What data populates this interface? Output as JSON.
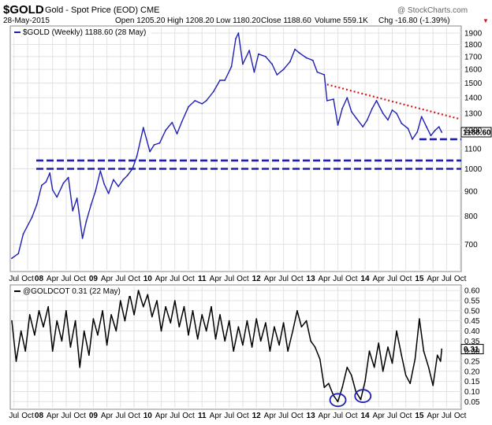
{
  "header": {
    "symbol": "$GOLD",
    "name": "Gold - Spot Price (EOD) CME",
    "date": "28-May-2015",
    "open": "Open 1205.20",
    "high": "High 1208.20",
    "low": "Low 1180.20",
    "close": "Close 1188.60",
    "volume": "Volume 559.1K",
    "chg": "Chg -16.80 (-1.39%)",
    "brand": "@ StockCharts.com",
    "chg_marker": "▼"
  },
  "chart_data": [
    {
      "type": "line",
      "legend": "$GOLD (Weekly) 1188.60 (28 May)",
      "last_value_label": "1188.60",
      "y_scale": "log",
      "ylim": [
        620,
        1950
      ],
      "y_ticks": [
        700,
        800,
        900,
        1000,
        1100,
        1200,
        1300,
        1400,
        1500,
        1600,
        1700,
        1800,
        1900
      ],
      "x_range": [
        2007.5,
        2015.77
      ],
      "x_ticks": [
        {
          "x": 2007.54,
          "label": "Jul"
        },
        {
          "x": 2007.79,
          "label": "Oct"
        },
        {
          "x": 2008.0,
          "label": "08"
        },
        {
          "x": 2008.25,
          "label": "Apr"
        },
        {
          "x": 2008.5,
          "label": "Jul"
        },
        {
          "x": 2008.75,
          "label": "Oct"
        },
        {
          "x": 2009.0,
          "label": "09"
        },
        {
          "x": 2009.25,
          "label": "Apr"
        },
        {
          "x": 2009.5,
          "label": "Jul"
        },
        {
          "x": 2009.75,
          "label": "Oct"
        },
        {
          "x": 2010.0,
          "label": "10"
        },
        {
          "x": 2010.25,
          "label": "Apr"
        },
        {
          "x": 2010.5,
          "label": "Jul"
        },
        {
          "x": 2010.75,
          "label": "Oct"
        },
        {
          "x": 2011.0,
          "label": "11"
        },
        {
          "x": 2011.25,
          "label": "Apr"
        },
        {
          "x": 2011.5,
          "label": "Jul"
        },
        {
          "x": 2011.75,
          "label": "Oct"
        },
        {
          "x": 2012.0,
          "label": "12"
        },
        {
          "x": 2012.25,
          "label": "Apr"
        },
        {
          "x": 2012.5,
          "label": "Jul"
        },
        {
          "x": 2012.75,
          "label": "Oct"
        },
        {
          "x": 2013.0,
          "label": "13"
        },
        {
          "x": 2013.25,
          "label": "Apr"
        },
        {
          "x": 2013.5,
          "label": "Jul"
        },
        {
          "x": 2013.75,
          "label": "Oct"
        },
        {
          "x": 2014.0,
          "label": "14"
        },
        {
          "x": 2014.25,
          "label": "Apr"
        },
        {
          "x": 2014.5,
          "label": "Jul"
        },
        {
          "x": 2014.75,
          "label": "Oct"
        },
        {
          "x": 2015.0,
          "label": "15"
        },
        {
          "x": 2015.25,
          "label": "Apr"
        },
        {
          "x": 2015.5,
          "label": "Jul"
        },
        {
          "x": 2015.75,
          "label": "Oct"
        }
      ],
      "series": [
        {
          "color": "#1f1fb4",
          "style": "weekly-bars",
          "points": [
            [
              2007.5,
              655
            ],
            [
              2007.62,
              670
            ],
            [
              2007.71,
              735
            ],
            [
              2007.87,
              795
            ],
            [
              2007.96,
              845
            ],
            [
              2008.05,
              925
            ],
            [
              2008.13,
              940
            ],
            [
              2008.2,
              980
            ],
            [
              2008.25,
              905
            ],
            [
              2008.33,
              875
            ],
            [
              2008.45,
              935
            ],
            [
              2008.54,
              960
            ],
            [
              2008.62,
              820
            ],
            [
              2008.7,
              870
            ],
            [
              2008.8,
              720
            ],
            [
              2008.87,
              780
            ],
            [
              2008.96,
              845
            ],
            [
              2009.04,
              900
            ],
            [
              2009.13,
              990
            ],
            [
              2009.2,
              930
            ],
            [
              2009.28,
              890
            ],
            [
              2009.37,
              950
            ],
            [
              2009.46,
              920
            ],
            [
              2009.55,
              950
            ],
            [
              2009.63,
              970
            ],
            [
              2009.72,
              1000
            ],
            [
              2009.8,
              1060
            ],
            [
              2009.92,
              1215
            ],
            [
              2010.04,
              1085
            ],
            [
              2010.12,
              1120
            ],
            [
              2010.22,
              1130
            ],
            [
              2010.33,
              1200
            ],
            [
              2010.45,
              1245
            ],
            [
              2010.54,
              1180
            ],
            [
              2010.63,
              1250
            ],
            [
              2010.75,
              1340
            ],
            [
              2010.87,
              1380
            ],
            [
              2011.0,
              1360
            ],
            [
              2011.08,
              1380
            ],
            [
              2011.21,
              1440
            ],
            [
              2011.33,
              1520
            ],
            [
              2011.42,
              1520
            ],
            [
              2011.54,
              1620
            ],
            [
              2011.62,
              1850
            ],
            [
              2011.67,
              1900
            ],
            [
              2011.75,
              1640
            ],
            [
              2011.87,
              1750
            ],
            [
              2011.96,
              1580
            ],
            [
              2012.04,
              1720
            ],
            [
              2012.17,
              1700
            ],
            [
              2012.29,
              1640
            ],
            [
              2012.38,
              1560
            ],
            [
              2012.5,
              1600
            ],
            [
              2012.62,
              1660
            ],
            [
              2012.71,
              1760
            ],
            [
              2012.79,
              1730
            ],
            [
              2012.92,
              1690
            ],
            [
              2013.04,
              1670
            ],
            [
              2013.12,
              1580
            ],
            [
              2013.25,
              1560
            ],
            [
              2013.3,
              1380
            ],
            [
              2013.42,
              1390
            ],
            [
              2013.5,
              1230
            ],
            [
              2013.58,
              1330
            ],
            [
              2013.67,
              1400
            ],
            [
              2013.75,
              1310
            ],
            [
              2013.84,
              1270
            ],
            [
              2013.96,
              1220
            ],
            [
              2014.04,
              1260
            ],
            [
              2014.13,
              1330
            ],
            [
              2014.21,
              1380
            ],
            [
              2014.33,
              1300
            ],
            [
              2014.42,
              1260
            ],
            [
              2014.5,
              1320
            ],
            [
              2014.58,
              1300
            ],
            [
              2014.67,
              1240
            ],
            [
              2014.79,
              1210
            ],
            [
              2014.87,
              1150
            ],
            [
              2014.96,
              1190
            ],
            [
              2015.04,
              1280
            ],
            [
              2015.13,
              1220
            ],
            [
              2015.21,
              1170
            ],
            [
              2015.29,
              1200
            ],
            [
              2015.36,
              1220
            ],
            [
              2015.41,
              1189
            ]
          ]
        }
      ],
      "trendlines": [
        {
          "color": "#d21c1c",
          "style": "dotted",
          "points": [
            [
              2013.3,
              1490
            ],
            [
              2015.75,
              1265
            ]
          ]
        },
        {
          "color": "#1f1fb4",
          "style": "dashed",
          "points": [
            [
              2015.0,
              1150
            ],
            [
              2015.77,
              1150
            ]
          ]
        },
        {
          "color": "#1f1fb4",
          "style": "dashed",
          "points": [
            [
              2007.95,
              1040
            ],
            [
              2015.77,
              1040
            ]
          ]
        },
        {
          "color": "#1f1fb4",
          "style": "dashed",
          "points": [
            [
              2007.95,
              1000
            ],
            [
              2015.77,
              1000
            ]
          ]
        }
      ]
    },
    {
      "type": "line",
      "legend": "@GOLDCOT 0.31 (22 May)",
      "last_value_label": "0.31",
      "ylim": [
        0.02,
        0.62
      ],
      "y_ticks": [
        0.05,
        0.1,
        0.15,
        0.2,
        0.25,
        0.3,
        0.35,
        0.4,
        0.45,
        0.5,
        0.55,
        0.6
      ],
      "series": [
        {
          "color": "#000000",
          "points": [
            [
              2007.5,
              0.45
            ],
            [
              2007.58,
              0.25
            ],
            [
              2007.67,
              0.4
            ],
            [
              2007.75,
              0.3
            ],
            [
              2007.83,
              0.48
            ],
            [
              2007.92,
              0.38
            ],
            [
              2008.0,
              0.5
            ],
            [
              2008.08,
              0.42
            ],
            [
              2008.17,
              0.52
            ],
            [
              2008.25,
              0.3
            ],
            [
              2008.33,
              0.45
            ],
            [
              2008.42,
              0.35
            ],
            [
              2008.5,
              0.5
            ],
            [
              2008.58,
              0.32
            ],
            [
              2008.67,
              0.45
            ],
            [
              2008.75,
              0.22
            ],
            [
              2008.83,
              0.4
            ],
            [
              2008.92,
              0.28
            ],
            [
              2009.0,
              0.46
            ],
            [
              2009.08,
              0.38
            ],
            [
              2009.17,
              0.5
            ],
            [
              2009.25,
              0.33
            ],
            [
              2009.33,
              0.48
            ],
            [
              2009.42,
              0.4
            ],
            [
              2009.5,
              0.55
            ],
            [
              2009.58,
              0.45
            ],
            [
              2009.67,
              0.58
            ],
            [
              2009.75,
              0.48
            ],
            [
              2009.83,
              0.6
            ],
            [
              2009.92,
              0.52
            ],
            [
              2010.0,
              0.58
            ],
            [
              2010.08,
              0.47
            ],
            [
              2010.17,
              0.55
            ],
            [
              2010.25,
              0.4
            ],
            [
              2010.33,
              0.52
            ],
            [
              2010.42,
              0.44
            ],
            [
              2010.5,
              0.55
            ],
            [
              2010.58,
              0.42
            ],
            [
              2010.67,
              0.52
            ],
            [
              2010.75,
              0.38
            ],
            [
              2010.83,
              0.5
            ],
            [
              2010.92,
              0.36
            ],
            [
              2011.0,
              0.48
            ],
            [
              2011.08,
              0.4
            ],
            [
              2011.17,
              0.52
            ],
            [
              2011.25,
              0.36
            ],
            [
              2011.33,
              0.48
            ],
            [
              2011.42,
              0.35
            ],
            [
              2011.5,
              0.45
            ],
            [
              2011.58,
              0.3
            ],
            [
              2011.67,
              0.42
            ],
            [
              2011.75,
              0.33
            ],
            [
              2011.83,
              0.45
            ],
            [
              2011.92,
              0.32
            ],
            [
              2012.0,
              0.46
            ],
            [
              2012.08,
              0.35
            ],
            [
              2012.17,
              0.44
            ],
            [
              2012.25,
              0.3
            ],
            [
              2012.33,
              0.42
            ],
            [
              2012.42,
              0.33
            ],
            [
              2012.5,
              0.44
            ],
            [
              2012.58,
              0.3
            ],
            [
              2012.67,
              0.4
            ],
            [
              2012.75,
              0.5
            ],
            [
              2012.83,
              0.42
            ],
            [
              2012.92,
              0.45
            ],
            [
              2013.0,
              0.35
            ],
            [
              2013.08,
              0.32
            ],
            [
              2013.17,
              0.26
            ],
            [
              2013.25,
              0.12
            ],
            [
              2013.33,
              0.14
            ],
            [
              2013.42,
              0.08
            ],
            [
              2013.5,
              0.05
            ],
            [
              2013.58,
              0.12
            ],
            [
              2013.67,
              0.22
            ],
            [
              2013.75,
              0.18
            ],
            [
              2013.83,
              0.1
            ],
            [
              2013.92,
              0.06
            ],
            [
              2014.0,
              0.15
            ],
            [
              2014.08,
              0.3
            ],
            [
              2014.17,
              0.22
            ],
            [
              2014.25,
              0.34
            ],
            [
              2014.33,
              0.2
            ],
            [
              2014.42,
              0.32
            ],
            [
              2014.5,
              0.24
            ],
            [
              2014.58,
              0.4
            ],
            [
              2014.67,
              0.28
            ],
            [
              2014.75,
              0.18
            ],
            [
              2014.83,
              0.14
            ],
            [
              2014.92,
              0.26
            ],
            [
              2015.0,
              0.46
            ],
            [
              2015.08,
              0.3
            ],
            [
              2015.17,
              0.22
            ],
            [
              2015.25,
              0.13
            ],
            [
              2015.33,
              0.28
            ],
            [
              2015.39,
              0.25
            ],
            [
              2015.41,
              0.31
            ]
          ]
        }
      ],
      "annotations": [
        {
          "type": "circle",
          "color": "#1f1fb4",
          "x": 2013.5,
          "y": 0.05
        },
        {
          "type": "circle",
          "color": "#1f1fb4",
          "x": 2013.96,
          "y": 0.07
        }
      ]
    }
  ]
}
